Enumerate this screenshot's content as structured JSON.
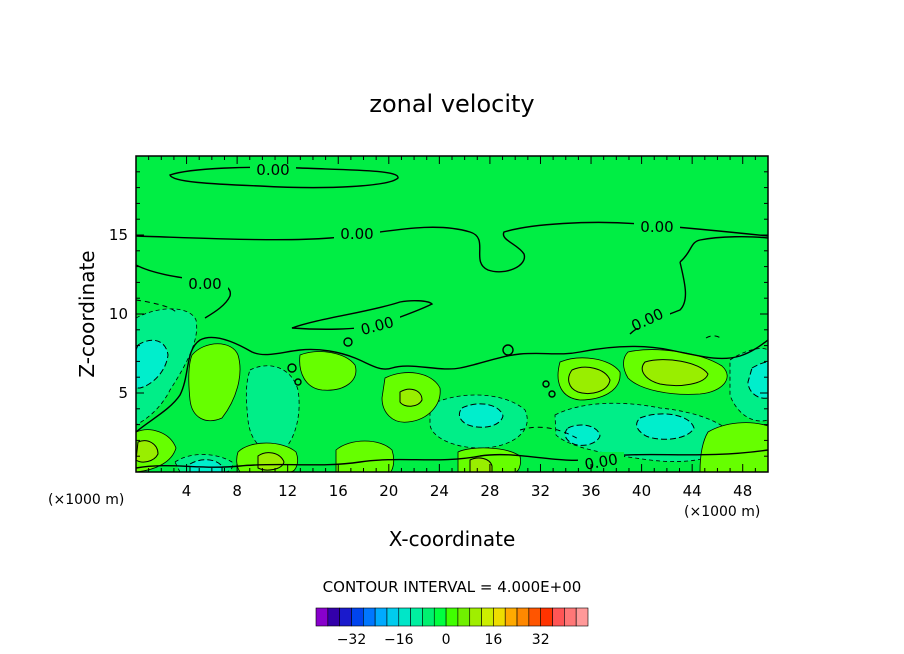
{
  "chart_data": {
    "type": "heatmap",
    "title": "zonal velocity",
    "xlabel": "X-coordinate",
    "ylabel": "Z-coordinate",
    "x_unit": "(×1000 m)",
    "x_unit_right": "(×1000 m)",
    "xlim": [
      0,
      50
    ],
    "ylim": [
      0,
      20
    ],
    "x_ticks": [
      "4",
      "8",
      "12",
      "16",
      "20",
      "24",
      "28",
      "32",
      "36",
      "40",
      "44",
      "48"
    ],
    "y_ticks": [
      "5",
      "10",
      "15"
    ],
    "contour_labels": [
      "0.00",
      "0.00",
      "0.00",
      "0.00",
      "0.00",
      "0.00",
      "0.00"
    ],
    "contour_interval_text": "CONTOUR INTERVAL = 4.000E+00",
    "colorbar": {
      "tick_labels": [
        "−32",
        "−16",
        "0",
        "16",
        "32"
      ],
      "colors": [
        "#8800cc",
        "#3300aa",
        "#1a1acc",
        "#0044ee",
        "#0077ff",
        "#00aaff",
        "#00ccee",
        "#00e6c8",
        "#00f0a0",
        "#00f070",
        "#00ff40",
        "#40ff00",
        "#70f000",
        "#a0ee00",
        "#ccee00",
        "#eedd00",
        "#ffaa00",
        "#ff8800",
        "#ff5500",
        "#ff3300",
        "#ff5555",
        "#ff7777",
        "#ff9999"
      ]
    },
    "field_colors": {
      "background": "#00ee44",
      "weak_positive": "#66ff00",
      "positive": "#99ee00",
      "weak_negative": "#00ee88",
      "negative": "#00eecc"
    }
  }
}
